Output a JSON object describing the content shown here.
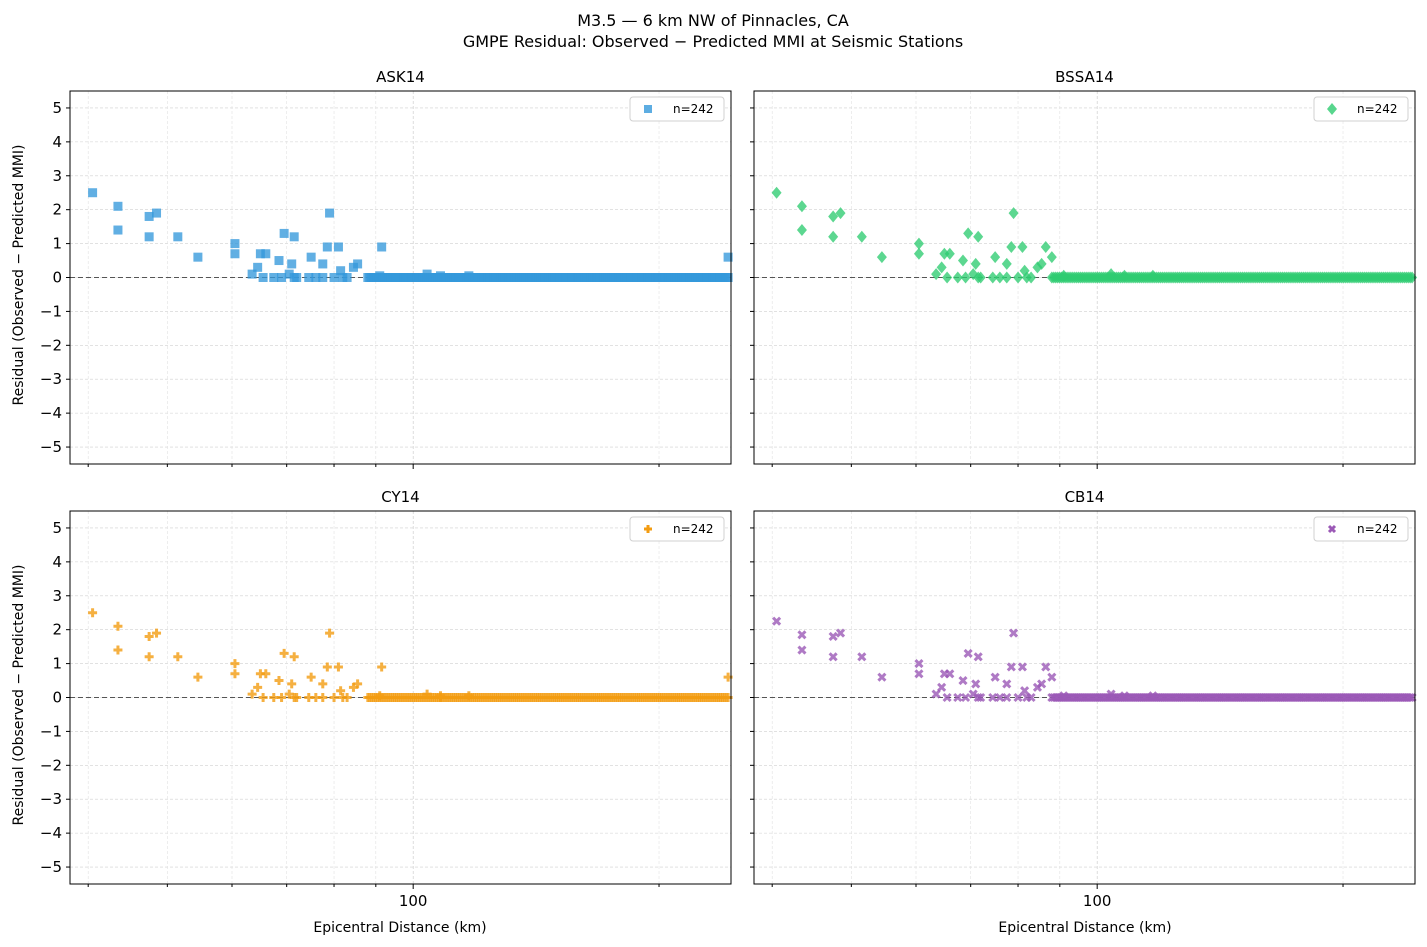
{
  "figure": {
    "title": "M3.5 — 6 km NW of Pinnacles, CA",
    "subtitle": "GMPE Residual: Observed − Predicted MMI at Seismic Stations"
  },
  "axes_common": {
    "xlabel": "Epicentral Distance (km)",
    "ylabel": "Residual (Observed − Predicted MMI)",
    "x_tick_label": "100",
    "y_tick_labels": [
      "−5",
      "−4",
      "−3",
      "−2",
      "−1",
      "0",
      "1",
      "2",
      "3",
      "4",
      "5"
    ]
  },
  "chart_data": [
    {
      "type": "scatter",
      "title": "ASK14",
      "color": "#3498db",
      "marker": "square",
      "legend": "n=242",
      "legend_position": "upper-right",
      "xscale": "log",
      "xlim": [
        38,
        245
      ],
      "ylim": [
        -5.5,
        5.5
      ],
      "grid": true,
      "reference_line_y": 0,
      "x": [
        40.5,
        43.5,
        43.5,
        47.5,
        47.5,
        48.5,
        51.5,
        54.5,
        60.5,
        60.5,
        63.5,
        64.5,
        65.0,
        65.5,
        66.0,
        67.5,
        68.5,
        69.5,
        69.0,
        70.5,
        71.5,
        71.0,
        71.5,
        72.0,
        74.5,
        75.0,
        76.0,
        77.5,
        77.5,
        78.5,
        79.0,
        80.0,
        81.0,
        81.5,
        82.0,
        83.0,
        84.5,
        85.5,
        91.5,
        108.0,
        243.0
      ],
      "y": [
        2.5,
        2.1,
        1.4,
        1.8,
        1.2,
        1.9,
        1.2,
        0.6,
        1.0,
        0.7,
        0.1,
        0.3,
        0.7,
        0.0,
        0.7,
        0.0,
        0.5,
        1.3,
        0.0,
        0.1,
        1.2,
        0.4,
        0.0,
        0.0,
        0.0,
        0.6,
        0.0,
        0.0,
        0.4,
        0.9,
        1.9,
        0.0,
        0.9,
        0.2,
        0.0,
        0.0,
        0.3,
        0.4,
        0.9,
        0.0,
        0.6
      ],
      "baseline": {
        "x_from": 88,
        "x_to": 243,
        "y": 0,
        "extra_points": [
          {
            "x": 91,
            "y": 0.05
          },
          {
            "x": 104,
            "y": 0.1
          },
          {
            "x": 108,
            "y": 0.05
          },
          {
            "x": 117,
            "y": 0.05
          }
        ]
      }
    },
    {
      "type": "scatter",
      "title": "BSSA14",
      "color": "#2ecc71",
      "marker": "diamond",
      "legend": "n=242",
      "legend_position": "upper-right",
      "xscale": "log",
      "xlim": [
        38,
        245
      ],
      "ylim": [
        -5.5,
        5.5
      ],
      "grid": true,
      "reference_line_y": 0,
      "x": [
        40.5,
        43.5,
        43.5,
        47.5,
        47.5,
        48.5,
        51.5,
        54.5,
        60.5,
        60.5,
        63.5,
        64.5,
        65.0,
        65.5,
        66.0,
        67.5,
        68.5,
        69.5,
        69.0,
        70.5,
        71.5,
        71.0,
        71.5,
        72.0,
        74.5,
        75.0,
        76.0,
        77.5,
        77.5,
        78.5,
        79.0,
        80.0,
        81.0,
        81.5,
        82.0,
        83.0,
        84.5,
        85.5
      ],
      "y": [
        2.5,
        2.1,
        1.4,
        1.8,
        1.2,
        1.9,
        1.2,
        0.6,
        1.0,
        0.7,
        0.1,
        0.3,
        0.7,
        0.0,
        0.7,
        0.0,
        0.5,
        1.3,
        0.0,
        0.1,
        1.2,
        0.4,
        0.0,
        0.0,
        0.0,
        0.6,
        0.0,
        0.0,
        0.4,
        0.9,
        1.9,
        0.0,
        0.9,
        0.2,
        0.0,
        0.0,
        0.3,
        0.4
      ],
      "extra_x": [
        86.5,
        88.0
      ],
      "extra_y": [
        0.9,
        0.6
      ],
      "baseline": {
        "x_from": 88,
        "x_to": 243,
        "y": 0,
        "extra_points": [
          {
            "x": 91,
            "y": 0.05
          },
          {
            "x": 104,
            "y": 0.1
          },
          {
            "x": 108,
            "y": 0.05
          },
          {
            "x": 117,
            "y": 0.05
          }
        ]
      }
    },
    {
      "type": "scatter",
      "title": "CY14",
      "color": "#f39c12",
      "marker": "plus",
      "legend": "n=242",
      "legend_position": "upper-right",
      "xscale": "log",
      "xlim": [
        38,
        245
      ],
      "ylim": [
        -5.5,
        5.5
      ],
      "grid": true,
      "reference_line_y": 0,
      "x": [
        40.5,
        43.5,
        43.5,
        47.5,
        47.5,
        48.5,
        51.5,
        54.5,
        60.5,
        60.5,
        63.5,
        64.5,
        65.0,
        65.5,
        66.0,
        67.5,
        68.5,
        69.5,
        69.0,
        70.5,
        71.5,
        71.0,
        71.5,
        72.0,
        74.5,
        75.0,
        76.0,
        77.5,
        77.5,
        78.5,
        79.0,
        80.0,
        81.0,
        81.5,
        82.0,
        83.0,
        84.5,
        85.5,
        91.5,
        108.0,
        243.0
      ],
      "y": [
        2.5,
        2.1,
        1.4,
        1.8,
        1.2,
        1.9,
        1.2,
        0.6,
        1.0,
        0.7,
        0.1,
        0.3,
        0.7,
        0.0,
        0.7,
        0.0,
        0.5,
        1.3,
        0.0,
        0.1,
        1.2,
        0.4,
        0.0,
        0.0,
        0.0,
        0.6,
        0.0,
        0.0,
        0.4,
        0.9,
        1.9,
        0.0,
        0.9,
        0.2,
        0.0,
        0.0,
        0.3,
        0.4,
        0.9,
        0.0,
        0.6
      ],
      "baseline": {
        "x_from": 88,
        "x_to": 243,
        "y": 0,
        "extra_points": [
          {
            "x": 91,
            "y": 0.05
          },
          {
            "x": 104,
            "y": 0.1
          },
          {
            "x": 108,
            "y": 0.05
          },
          {
            "x": 117,
            "y": 0.05
          }
        ]
      }
    },
    {
      "type": "scatter",
      "title": "CB14",
      "color": "#9b59b6",
      "marker": "x",
      "legend": "n=242",
      "legend_position": "upper-right",
      "xscale": "log",
      "xlim": [
        38,
        245
      ],
      "ylim": [
        -5.5,
        5.5
      ],
      "grid": true,
      "reference_line_y": 0,
      "x": [
        40.5,
        43.5,
        43.5,
        47.5,
        47.5,
        48.5,
        51.5,
        54.5,
        60.5,
        60.5,
        63.5,
        64.5,
        65.0,
        65.5,
        66.0,
        67.5,
        68.5,
        69.5,
        69.0,
        70.5,
        71.5,
        71.0,
        71.5,
        72.0,
        74.5,
        75.0,
        76.0,
        77.5,
        77.5,
        78.5,
        79.0,
        80.0,
        81.0,
        81.5,
        82.0,
        83.0,
        84.5,
        85.5
      ],
      "y": [
        2.25,
        1.85,
        1.4,
        1.8,
        1.2,
        1.9,
        1.2,
        0.6,
        1.0,
        0.7,
        0.1,
        0.3,
        0.7,
        0.0,
        0.7,
        0.0,
        0.5,
        1.3,
        0.0,
        0.1,
        1.2,
        0.4,
        0.0,
        0.0,
        0.0,
        0.6,
        0.0,
        0.0,
        0.4,
        0.9,
        1.9,
        0.0,
        0.9,
        0.2,
        0.0,
        0.0,
        0.3,
        0.4
      ],
      "extra_x": [
        86.5,
        88.0
      ],
      "extra_y": [
        0.9,
        0.6
      ],
      "baseline": {
        "x_from": 88,
        "x_to": 243,
        "y": 0,
        "extra_points": [
          {
            "x": 91,
            "y": 0.05
          },
          {
            "x": 104,
            "y": 0.1
          },
          {
            "x": 108,
            "y": 0.05
          },
          {
            "x": 117,
            "y": 0.05
          }
        ]
      }
    }
  ]
}
